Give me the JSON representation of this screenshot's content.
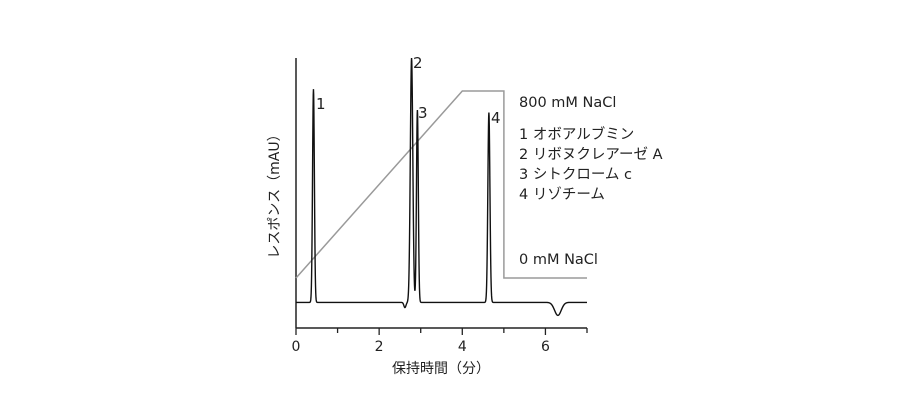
{
  "chart_data": {
    "type": "line",
    "xlabel": "保持時間（分）",
    "ylabel": "レスポンス（mAU）",
    "xlim": [
      0,
      7
    ],
    "x_ticks": [
      "0",
      "2",
      "4",
      "6"
    ],
    "grid": false,
    "baseline_y": 0.06,
    "peaks": [
      {
        "label": "1",
        "x": 0.42,
        "height": 0.88,
        "width": 0.022
      },
      {
        "label": "2",
        "x": 2.78,
        "height": 1.0,
        "width": 0.03
      },
      {
        "label": "3",
        "x": 2.92,
        "height": 0.8,
        "width": 0.022
      },
      {
        "label": "4",
        "x": 4.64,
        "height": 0.79,
        "width": 0.025
      }
    ],
    "minor_peaks": [
      {
        "x": 2.62,
        "height": 0.04,
        "width": 0.025
      },
      {
        "x": 4.52,
        "height": 0.06,
        "width": 0.02
      },
      {
        "x": 6.3,
        "height": 0.01,
        "width": 0.08
      }
    ],
    "gradient": {
      "label_high": "800 mM NaCl",
      "label_low": "0 mM NaCl",
      "points": [
        {
          "time": 0.0,
          "level": 0.0
        },
        {
          "time": 4.0,
          "level": 1.0
        },
        {
          "time": 5.0,
          "level": 1.0
        },
        {
          "time": 5.0,
          "level": 0.0
        },
        {
          "time": 7.0,
          "level": 0.0
        }
      ]
    },
    "legend": {
      "items": [
        "1 オボアルブミン",
        "2 リボヌクレアーゼ A",
        "3 シトクローム c",
        "4 リゾチーム"
      ]
    }
  }
}
